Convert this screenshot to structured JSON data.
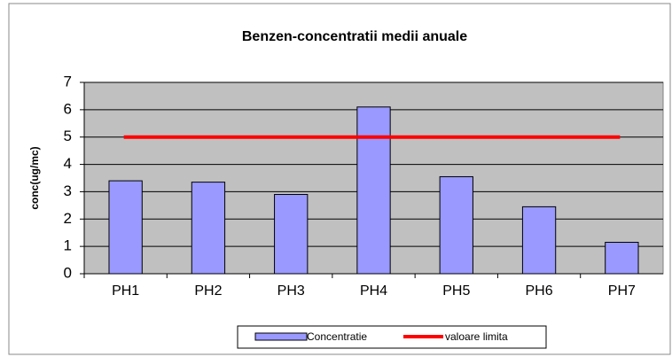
{
  "chart_data": {
    "type": "bar",
    "title": "Benzen-concentratii medii anuale",
    "ylabel": "conc(ug/mc)",
    "categories": [
      "PH1",
      "PH2",
      "PH3",
      "PH4",
      "PH5",
      "PH6",
      "PH7"
    ],
    "series": [
      {
        "name": "Concentratie",
        "type": "bar",
        "color": "#9999ff",
        "values": [
          3.4,
          3.35,
          2.9,
          6.1,
          3.55,
          2.45,
          1.15
        ]
      },
      {
        "name": "valoare limita",
        "type": "line",
        "color": "#ff0000",
        "values": [
          5,
          5,
          5,
          5,
          5,
          5,
          5
        ]
      }
    ],
    "ylim": [
      0,
      7
    ],
    "yticks": [
      0,
      1,
      2,
      3,
      4,
      5,
      6,
      7
    ],
    "grid": true,
    "legend": "bottom"
  }
}
